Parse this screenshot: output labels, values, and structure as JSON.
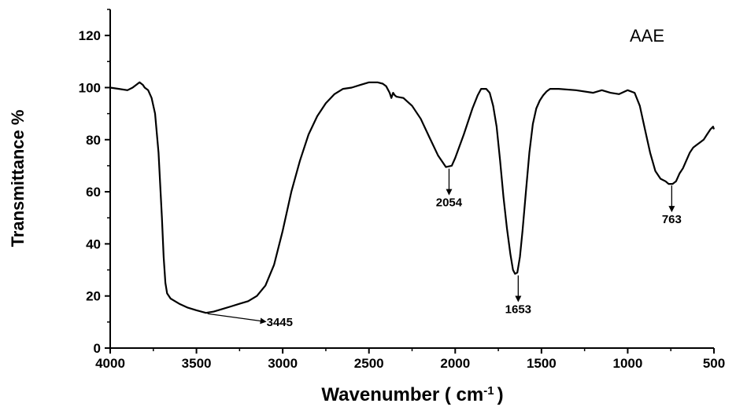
{
  "chart_data": {
    "type": "line",
    "title": "",
    "xlabel": "Wavenumber ( cm",
    "xlabel_sup": "-1",
    "xlabel_end": ")",
    "ylabel": "Transmittance %",
    "xlim": [
      4000,
      500
    ],
    "ylim": [
      0,
      130
    ],
    "x_reversed": true,
    "x_ticks": [
      4000,
      3500,
      3000,
      2500,
      2000,
      1500,
      1000,
      500
    ],
    "x_tick_labels": [
      "4000",
      "3500",
      "3000",
      "2500",
      "2000",
      "1500",
      "1000",
      "500"
    ],
    "y_ticks": [
      0,
      20,
      40,
      60,
      80,
      100,
      120
    ],
    "y_tick_labels": [
      "0",
      "20",
      "40",
      "60",
      "80",
      "100",
      "120"
    ],
    "grid": false,
    "legend": "top-right",
    "series": [
      {
        "name": "AAE",
        "color": "#000000",
        "points": [
          [
            4000,
            100
          ],
          [
            3950,
            99.5
          ],
          [
            3900,
            99
          ],
          [
            3870,
            100
          ],
          [
            3850,
            101
          ],
          [
            3830,
            102
          ],
          [
            3810,
            101
          ],
          [
            3800,
            100
          ],
          [
            3780,
            99
          ],
          [
            3760,
            96
          ],
          [
            3740,
            90
          ],
          [
            3720,
            75
          ],
          [
            3700,
            50
          ],
          [
            3690,
            35
          ],
          [
            3680,
            25
          ],
          [
            3670,
            21
          ],
          [
            3650,
            19
          ],
          [
            3600,
            17
          ],
          [
            3550,
            15.5
          ],
          [
            3500,
            14.5
          ],
          [
            3445,
            13.5
          ],
          [
            3400,
            14
          ],
          [
            3350,
            15
          ],
          [
            3300,
            16
          ],
          [
            3250,
            17
          ],
          [
            3200,
            18
          ],
          [
            3150,
            20
          ],
          [
            3100,
            24
          ],
          [
            3050,
            32
          ],
          [
            3000,
            45
          ],
          [
            2950,
            60
          ],
          [
            2900,
            72
          ],
          [
            2850,
            82
          ],
          [
            2800,
            89
          ],
          [
            2750,
            94
          ],
          [
            2700,
            97.5
          ],
          [
            2650,
            99.5
          ],
          [
            2600,
            100
          ],
          [
            2550,
            101
          ],
          [
            2500,
            102
          ],
          [
            2450,
            102
          ],
          [
            2420,
            101.5
          ],
          [
            2400,
            100.5
          ],
          [
            2380,
            98
          ],
          [
            2370,
            96
          ],
          [
            2360,
            98
          ],
          [
            2350,
            97
          ],
          [
            2340,
            96.5
          ],
          [
            2300,
            96
          ],
          [
            2250,
            93
          ],
          [
            2200,
            88
          ],
          [
            2150,
            81
          ],
          [
            2100,
            74
          ],
          [
            2054,
            69.5
          ],
          [
            2020,
            70
          ],
          [
            2000,
            73
          ],
          [
            1950,
            82
          ],
          [
            1900,
            92
          ],
          [
            1870,
            97
          ],
          [
            1850,
            99.5
          ],
          [
            1820,
            99.5
          ],
          [
            1800,
            98
          ],
          [
            1780,
            93
          ],
          [
            1760,
            85
          ],
          [
            1740,
            72
          ],
          [
            1720,
            58
          ],
          [
            1700,
            46
          ],
          [
            1680,
            36
          ],
          [
            1665,
            30
          ],
          [
            1653,
            28.5
          ],
          [
            1640,
            29
          ],
          [
            1625,
            35
          ],
          [
            1610,
            45
          ],
          [
            1590,
            60
          ],
          [
            1570,
            75
          ],
          [
            1550,
            86
          ],
          [
            1530,
            92
          ],
          [
            1510,
            95
          ],
          [
            1490,
            97
          ],
          [
            1470,
            98.5
          ],
          [
            1450,
            99.5
          ],
          [
            1400,
            99.5
          ],
          [
            1300,
            99
          ],
          [
            1200,
            98
          ],
          [
            1150,
            99
          ],
          [
            1100,
            98
          ],
          [
            1050,
            97.5
          ],
          [
            1000,
            99
          ],
          [
            960,
            98
          ],
          [
            930,
            93
          ],
          [
            900,
            84
          ],
          [
            870,
            75
          ],
          [
            840,
            68
          ],
          [
            810,
            65
          ],
          [
            780,
            64
          ],
          [
            763,
            63
          ],
          [
            740,
            63
          ],
          [
            720,
            64
          ],
          [
            700,
            67
          ],
          [
            680,
            69
          ],
          [
            660,
            72
          ],
          [
            640,
            75
          ],
          [
            620,
            77
          ],
          [
            600,
            78
          ],
          [
            580,
            79
          ],
          [
            560,
            80
          ],
          [
            540,
            82
          ],
          [
            520,
            84
          ],
          [
            505,
            85
          ],
          [
            500,
            84
          ]
        ]
      }
    ],
    "annotations": [
      {
        "label": "3445",
        "x": 3445,
        "y": 13.5,
        "direction": "right"
      },
      {
        "label": "2054",
        "x": 2054,
        "y": 69.5,
        "direction": "down"
      },
      {
        "label": "1653",
        "x": 1653,
        "y": 28.5,
        "direction": "down"
      },
      {
        "label": "763",
        "x": 763,
        "y": 63,
        "direction": "down"
      }
    ]
  }
}
